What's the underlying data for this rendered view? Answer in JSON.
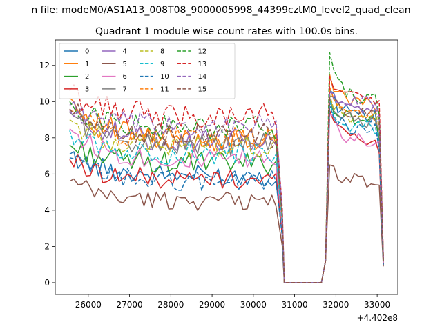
{
  "figure": {
    "suptitle": "n file: modeM0/AS1A13_008T08_9000005998_44399cztM0_level2_quad_clean",
    "title": "Quadrant 1 module wise count rates with 100.0s bins.",
    "offset_label": "+4.402e8"
  },
  "chart_data": {
    "type": "line",
    "title": "Quadrant 1 module wise count rates with 100.0s bins.",
    "xlabel": "",
    "ylabel": "",
    "x_offset": 440200000,
    "xlim": [
      25200,
      33500
    ],
    "ylim": [
      -0.65,
      13.4
    ],
    "xticks": [
      26000,
      27000,
      28000,
      29000,
      30000,
      31000,
      32000,
      33000
    ],
    "yticks": [
      0,
      2,
      4,
      6,
      8,
      10,
      12
    ],
    "grid": false,
    "legend": {
      "placement": "top-left",
      "columns": 4
    },
    "x_start": 25550,
    "x_step": 100,
    "gap": {
      "zero_from": 30750,
      "zero_to": 31650
    },
    "second_segment_start": 31650,
    "x_end": 33150,
    "series": [
      {
        "name": "0",
        "color": "#1f77b4",
        "dash": "solid",
        "start": 7.1,
        "level1": 5.9,
        "peak": 10.6,
        "level2": 9.2,
        "end_pre": 5.8,
        "end": 1.0
      },
      {
        "name": "1",
        "color": "#ff7f0e",
        "dash": "solid",
        "start": 10.2,
        "level1": 7.9,
        "peak": 11.5,
        "level2": 9.9,
        "end_pre": 8.5,
        "end": 1.2
      },
      {
        "name": "2",
        "color": "#2ca02c",
        "dash": "solid",
        "start": 7.6,
        "level1": 6.6,
        "peak": 10.1,
        "level2": 9.0,
        "end_pre": 7.5,
        "end": 1.1
      },
      {
        "name": "3",
        "color": "#d62728",
        "dash": "solid",
        "start": 6.8,
        "level1": 5.7,
        "peak": 9.5,
        "level2": 7.9,
        "end_pre": 6.4,
        "end": 1.0
      },
      {
        "name": "4",
        "color": "#9467bd",
        "dash": "solid",
        "start": 9.8,
        "level1": 7.8,
        "peak": 10.8,
        "level2": 9.6,
        "end_pre": 8.3,
        "end": 1.2
      },
      {
        "name": "5",
        "color": "#8c564b",
        "dash": "solid",
        "start": 5.6,
        "level1": 4.5,
        "peak": 6.5,
        "level2": 5.6,
        "end_pre": 5.1,
        "end": 0.9
      },
      {
        "name": "6",
        "color": "#e377c2",
        "dash": "solid",
        "start": 8.5,
        "level1": 6.8,
        "peak": 9.3,
        "level2": 7.9,
        "end_pre": 7.0,
        "end": 1.1
      },
      {
        "name": "7",
        "color": "#7f7f7f",
        "dash": "solid",
        "start": 9.4,
        "level1": 7.6,
        "peak": 10.2,
        "level2": 8.9,
        "end_pre": 7.9,
        "end": 1.2
      },
      {
        "name": "8",
        "color": "#bcbd22",
        "dash": "dashed",
        "start": 9.0,
        "level1": 7.5,
        "peak": 10.4,
        "level2": 9.0,
        "end_pre": 7.9,
        "end": 1.2
      },
      {
        "name": "9",
        "color": "#17becf",
        "dash": "dashed",
        "start": 8.4,
        "level1": 7.1,
        "peak": 10.0,
        "level2": 8.6,
        "end_pre": 7.5,
        "end": 1.1
      },
      {
        "name": "10",
        "color": "#1f77b4",
        "dash": "dashed",
        "start": 6.9,
        "level1": 5.6,
        "peak": 9.8,
        "level2": 8.5,
        "end_pre": 6.6,
        "end": 1.0
      },
      {
        "name": "11",
        "color": "#ff7f0e",
        "dash": "dashed",
        "start": 9.5,
        "level1": 7.9,
        "peak": 10.8,
        "level2": 9.2,
        "end_pre": 8.1,
        "end": 1.2
      },
      {
        "name": "12",
        "color": "#2ca02c",
        "dash": "dashed",
        "start": 10.0,
        "level1": 8.5,
        "peak": 12.7,
        "level2": 10.1,
        "end_pre": 8.6,
        "end": 1.3
      },
      {
        "name": "13",
        "color": "#d62728",
        "dash": "dashed",
        "start": 10.6,
        "level1": 9.2,
        "peak": 11.4,
        "level2": 10.2,
        "end_pre": 10.0,
        "end": 1.4
      },
      {
        "name": "14",
        "color": "#9467bd",
        "dash": "dashed",
        "start": 9.5,
        "level1": 8.6,
        "peak": 10.5,
        "level2": 9.9,
        "end_pre": 9.0,
        "end": 1.3
      },
      {
        "name": "15",
        "color": "#8c564b",
        "dash": "dashed",
        "start": 9.6,
        "level1": 8.1,
        "peak": 10.3,
        "level2": 9.4,
        "end_pre": 8.4,
        "end": 1.2
      }
    ]
  }
}
